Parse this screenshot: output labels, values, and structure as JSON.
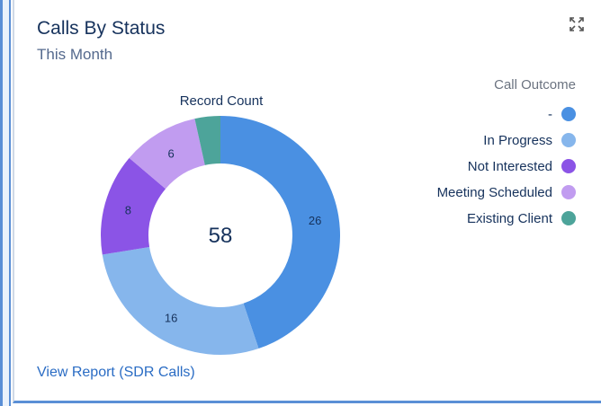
{
  "header": {
    "title": "Calls By Status",
    "subtitle": "This Month"
  },
  "icons": {
    "expand": "expand-icon"
  },
  "footer": {
    "view_report_label": "View Report (SDR Calls)"
  },
  "chart_data": {
    "type": "pie",
    "donut": true,
    "title": "Record Count",
    "center_total": "58",
    "legend_title": "Call Outcome",
    "legend_placement": "right",
    "categories": [
      "-",
      "In Progress",
      "Not Interested",
      "Meeting Scheduled",
      "Existing Client"
    ],
    "values": [
      26,
      16,
      8,
      6,
      2
    ],
    "value_labels": [
      "26",
      "16",
      "8",
      "6",
      ""
    ],
    "colors": [
      "#4a90e2",
      "#86b6ec",
      "#8b54e6",
      "#c19cf0",
      "#4da49a"
    ]
  }
}
